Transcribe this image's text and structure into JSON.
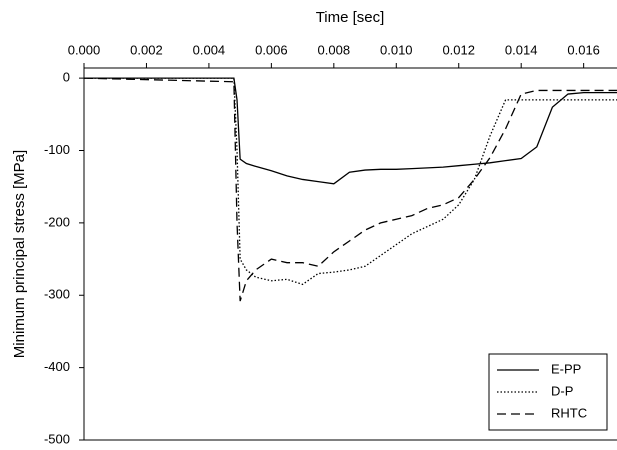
{
  "chart_data": {
    "type": "line",
    "x_label": "Time [sec]",
    "y_label": "Minimum principal stress [MPa]",
    "x": [
      0,
      0.0048,
      0.0049,
      0.005,
      0.0052,
      0.0055,
      0.006,
      0.0065,
      0.007,
      0.0075,
      0.008,
      0.0085,
      0.009,
      0.0095,
      0.01,
      0.0105,
      0.011,
      0.0115,
      0.012,
      0.0125,
      0.013,
      0.0135,
      0.014,
      0.0145,
      0.015,
      0.0155,
      0.016,
      0.0171
    ],
    "series": [
      {
        "name": "E-PP",
        "color": "#000000",
        "style": "solid",
        "values": [
          0,
          0,
          -30,
          -112,
          -118,
          -122,
          -128,
          -135,
          -140,
          -143,
          -146,
          -130,
          -127,
          -126,
          -126,
          -125,
          -124,
          -123,
          -121,
          -119,
          -117,
          -114,
          -111,
          -95,
          -40,
          -22,
          -20,
          -20
        ]
      },
      {
        "name": "D-P",
        "color": "#000000",
        "style": "dotted",
        "values": [
          0,
          0,
          -100,
          -250,
          -265,
          -275,
          -280,
          -278,
          -285,
          -270,
          -268,
          -265,
          -260,
          -245,
          -230,
          -215,
          -205,
          -195,
          -175,
          -140,
          -80,
          -30,
          -30,
          -30,
          -30,
          -30,
          -30,
          -30
        ]
      },
      {
        "name": "RHTC",
        "color": "#000000",
        "style": "dashed",
        "values": [
          0,
          -5,
          -200,
          -308,
          -280,
          -265,
          -250,
          -255,
          -255,
          -260,
          -240,
          -225,
          -210,
          -200,
          -195,
          -190,
          -180,
          -175,
          -165,
          -140,
          -110,
          -70,
          -22,
          -17,
          -17,
          -17,
          -17,
          -17
        ]
      }
    ],
    "xlim": [
      0,
      0.0171
    ],
    "xticks": [
      {
        "value": 0,
        "label": "0.000"
      },
      {
        "value": 0.002,
        "label": "0.002"
      },
      {
        "value": 0.004,
        "label": "0.004"
      },
      {
        "value": 0.006,
        "label": "0.006"
      },
      {
        "value": 0.008,
        "label": "0.008"
      },
      {
        "value": 0.01,
        "label": "0.010"
      },
      {
        "value": 0.012,
        "label": "0.012"
      },
      {
        "value": 0.014,
        "label": "0.014"
      },
      {
        "value": 0.016,
        "label": "0.016"
      }
    ],
    "ylim": [
      -500,
      14
    ],
    "yticks": [
      0,
      -100,
      -200,
      -300,
      -400,
      -500
    ],
    "x_axis_position": "top",
    "legend": "lower right"
  }
}
